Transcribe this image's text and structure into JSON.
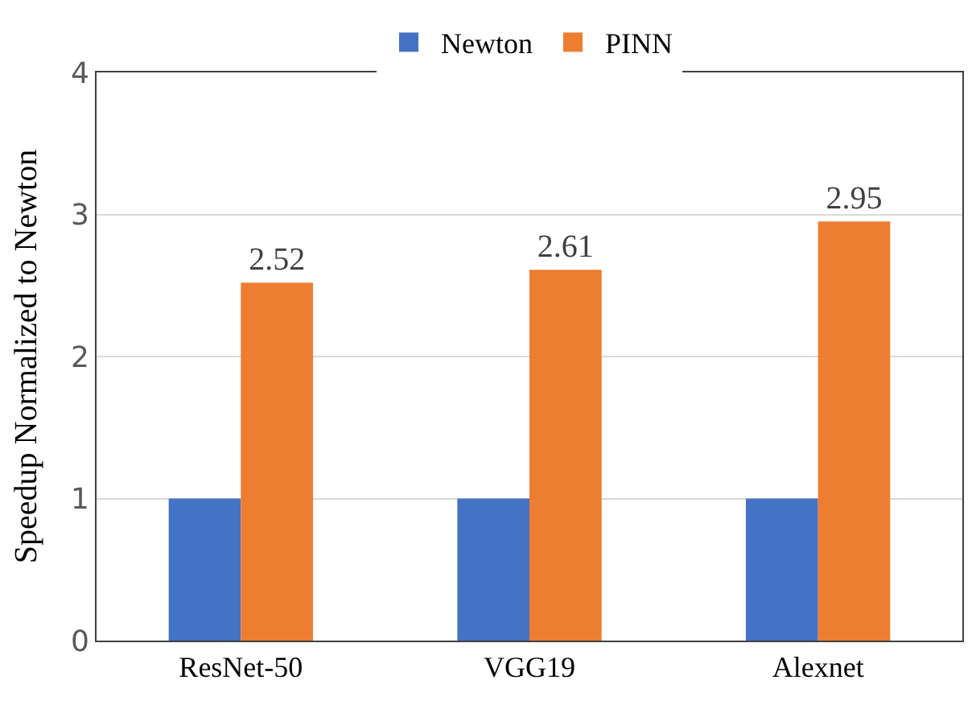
{
  "chart_data": {
    "type": "bar",
    "ylabel": "Speedup Normalized to Newton",
    "categories": [
      "ResNet-50",
      "VGG19",
      "Alexnet"
    ],
    "series": [
      {
        "name": "Newton",
        "color": "#4472c4",
        "values": [
          1,
          1,
          1
        ]
      },
      {
        "name": "PINN",
        "color": "#ed7d31",
        "values": [
          2.52,
          2.61,
          2.95
        ],
        "value_labels": [
          "2.52",
          "2.61",
          "2.95"
        ]
      }
    ],
    "ylim": [
      0,
      4
    ],
    "yticks": [
      0,
      1,
      2,
      3,
      4
    ],
    "grid": "y",
    "legend": "top"
  }
}
